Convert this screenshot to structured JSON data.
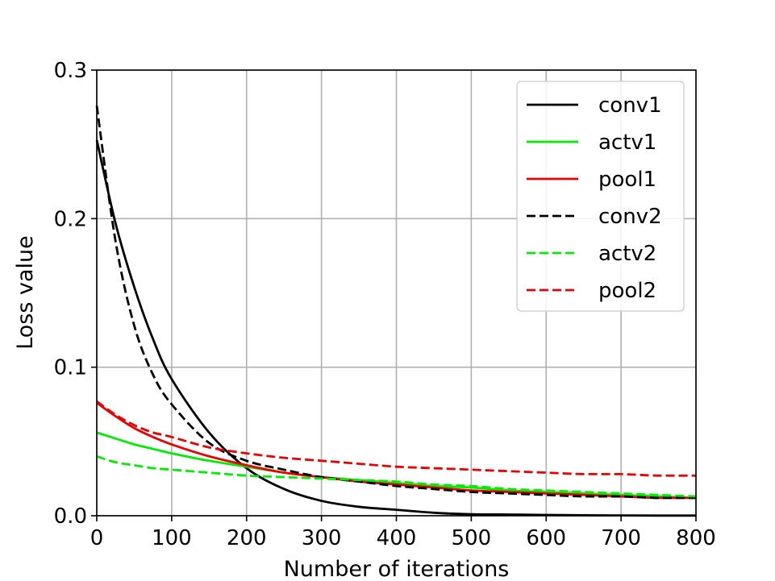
{
  "chart_data": {
    "type": "line",
    "title": "",
    "xlabel": "Number of iterations",
    "ylabel": "Loss value",
    "xlim": [
      0,
      800
    ],
    "ylim": [
      0,
      0.3
    ],
    "xticks": [
      0,
      100,
      200,
      300,
      400,
      500,
      600,
      700,
      800
    ],
    "yticks": [
      0.0,
      0.1,
      0.2,
      0.3
    ],
    "xtick_labels": [
      "0",
      "100",
      "200",
      "300",
      "400",
      "500",
      "600",
      "700",
      "800"
    ],
    "ytick_labels": [
      "0.0",
      "0.1",
      "0.2",
      "0.3"
    ],
    "grid": true,
    "legend_position": "top-right",
    "x": [
      0,
      25,
      50,
      75,
      100,
      150,
      200,
      250,
      300,
      350,
      400,
      450,
      500,
      550,
      600,
      650,
      700,
      750,
      800
    ],
    "series": [
      {
        "name": "conv1",
        "color": "#000000",
        "dash": "solid",
        "values": [
          0.253,
          0.197,
          0.154,
          0.119,
          0.092,
          0.056,
          0.032,
          0.018,
          0.01,
          0.006,
          0.004,
          0.002,
          0.001,
          0.0008,
          0.0005,
          0.0003,
          0.0002,
          0.0001,
          0.0001
        ]
      },
      {
        "name": "actv1",
        "color": "#00ee00",
        "dash": "solid",
        "values": [
          0.056,
          0.052,
          0.048,
          0.045,
          0.042,
          0.037,
          0.033,
          0.029,
          0.026,
          0.024,
          0.022,
          0.02,
          0.019,
          0.017,
          0.016,
          0.015,
          0.014,
          0.013,
          0.012
        ]
      },
      {
        "name": "pool1",
        "color": "#ee0000",
        "dash": "solid",
        "values": [
          0.076,
          0.067,
          0.059,
          0.053,
          0.048,
          0.04,
          0.034,
          0.029,
          0.026,
          0.023,
          0.021,
          0.019,
          0.017,
          0.016,
          0.015,
          0.014,
          0.013,
          0.012,
          0.012
        ]
      },
      {
        "name": "conv2",
        "color": "#000000",
        "dash": "dashed",
        "values": [
          0.276,
          0.185,
          0.128,
          0.095,
          0.075,
          0.049,
          0.037,
          0.031,
          0.026,
          0.023,
          0.02,
          0.018,
          0.016,
          0.015,
          0.014,
          0.013,
          0.013,
          0.012,
          0.012
        ]
      },
      {
        "name": "actv2",
        "color": "#00ee00",
        "dash": "dashed",
        "values": [
          0.04,
          0.036,
          0.034,
          0.032,
          0.031,
          0.029,
          0.027,
          0.026,
          0.025,
          0.024,
          0.023,
          0.021,
          0.02,
          0.018,
          0.017,
          0.016,
          0.015,
          0.014,
          0.013
        ]
      },
      {
        "name": "pool2",
        "color": "#ee0000",
        "dash": "dashed",
        "values": [
          0.077,
          0.068,
          0.061,
          0.056,
          0.053,
          0.046,
          0.042,
          0.039,
          0.037,
          0.035,
          0.033,
          0.032,
          0.031,
          0.03,
          0.029,
          0.028,
          0.028,
          0.027,
          0.027
        ]
      }
    ]
  }
}
